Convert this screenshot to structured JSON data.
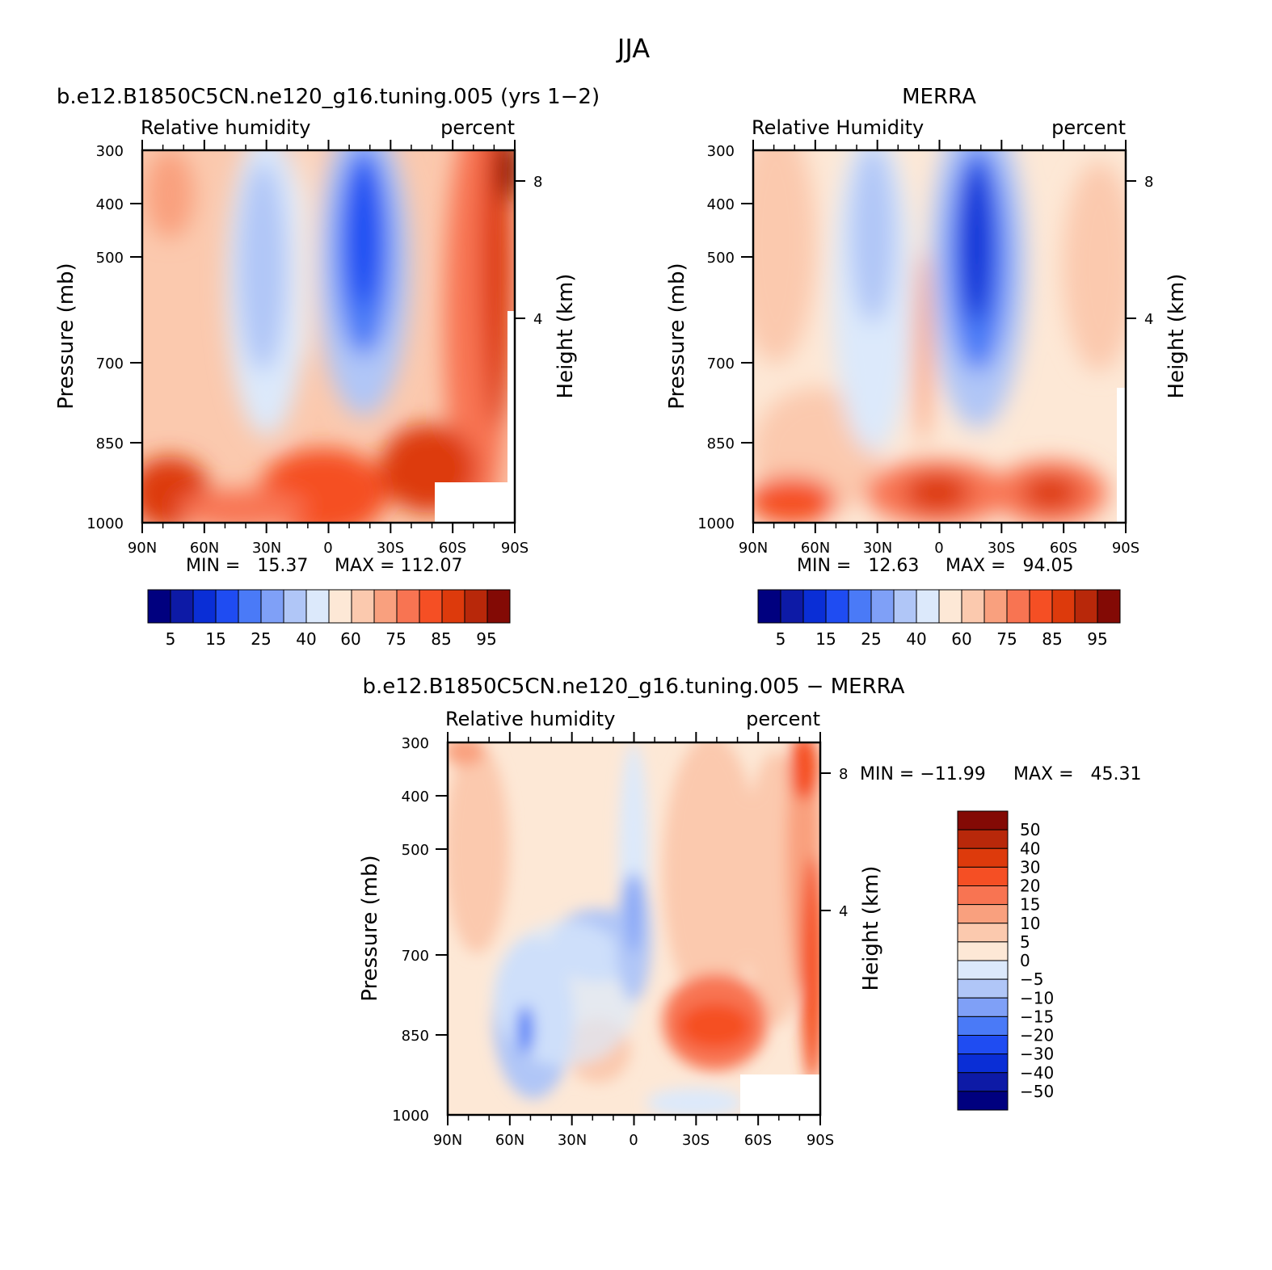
{
  "figure": {
    "season": "JJA"
  },
  "chart_data": [
    {
      "type": "heatmap",
      "title": "b.e12.B1850C5CN.ne120_g16.tuning.005 (yrs 1−2)",
      "variable": "Relative humidity",
      "units": "percent",
      "xlabel": "",
      "ylabel": "Pressure (mb)",
      "y2label": "Height (km)",
      "x_ticks": [
        "90N",
        "60N",
        "30N",
        "0",
        "30S",
        "60S",
        "90S"
      ],
      "y_ticks": [
        300,
        400,
        500,
        700,
        850,
        1000
      ],
      "y2_ticks": [
        8,
        4
      ],
      "min_label": "MIN =   15.37",
      "max_label": "MAX = 112.07",
      "min": 15.37,
      "max": 112.07,
      "contour_levels": [
        "5",
        "15",
        "25",
        "40",
        "60",
        "75",
        "85",
        "95"
      ],
      "colorbar_colors": [
        "#00007f",
        "#0d1aa6",
        "#0a2ed6",
        "#1f4cf2",
        "#4a7af7",
        "#7fa0f7",
        "#b0c6f7",
        "#dce9fb",
        "#fde8d6",
        "#fbc9ae",
        "#f9a07e",
        "#f87452",
        "#f54f24",
        "#dd3a0c",
        "#b8280a",
        "#830a05"
      ]
    },
    {
      "type": "heatmap",
      "title": "MERRA",
      "variable": "Relative Humidity",
      "units": "percent",
      "xlabel": "",
      "ylabel": "Pressure (mb)",
      "y2label": "Height (km)",
      "x_ticks": [
        "90N",
        "60N",
        "30N",
        "0",
        "30S",
        "60S",
        "90S"
      ],
      "y_ticks": [
        300,
        400,
        500,
        700,
        850,
        1000
      ],
      "y2_ticks": [
        8,
        4
      ],
      "min_label": "MIN =   12.63",
      "max_label": "MAX =   94.05",
      "min": 12.63,
      "max": 94.05,
      "contour_levels": [
        "5",
        "15",
        "25",
        "40",
        "60",
        "75",
        "85",
        "95"
      ],
      "colorbar_colors": [
        "#00007f",
        "#0d1aa6",
        "#0a2ed6",
        "#1f4cf2",
        "#4a7af7",
        "#7fa0f7",
        "#b0c6f7",
        "#dce9fb",
        "#fde8d6",
        "#fbc9ae",
        "#f9a07e",
        "#f87452",
        "#f54f24",
        "#dd3a0c",
        "#b8280a",
        "#830a05"
      ]
    },
    {
      "type": "heatmap",
      "title": "b.e12.B1850C5CN.ne120_g16.tuning.005 − MERRA",
      "variable": "Relative humidity",
      "units": "percent",
      "xlabel": "",
      "ylabel": "Pressure (mb)",
      "y2label": "Height (km)",
      "x_ticks": [
        "90N",
        "60N",
        "30N",
        "0",
        "30S",
        "60S",
        "90S"
      ],
      "y_ticks": [
        300,
        400,
        500,
        700,
        850,
        1000
      ],
      "y2_ticks": [
        8,
        4
      ],
      "min_label": "MIN = −11.99",
      "max_label": "MAX =   45.31",
      "min": -11.99,
      "max": 45.31,
      "contour_levels": [
        "50",
        "40",
        "30",
        "20",
        "15",
        "10",
        "5",
        "0",
        "−5",
        "−10",
        "−15",
        "−20",
        "−30",
        "−40",
        "−50"
      ],
      "colorbar_colors": [
        "#830a05",
        "#b8280a",
        "#dd3a0c",
        "#f54f24",
        "#f87452",
        "#f9a07e",
        "#fbc9ae",
        "#fde8d6",
        "#dce9fb",
        "#b0c6f7",
        "#7fa0f7",
        "#4a7af7",
        "#1f4cf2",
        "#0a2ed6",
        "#0d1aa6",
        "#00007f"
      ]
    }
  ]
}
